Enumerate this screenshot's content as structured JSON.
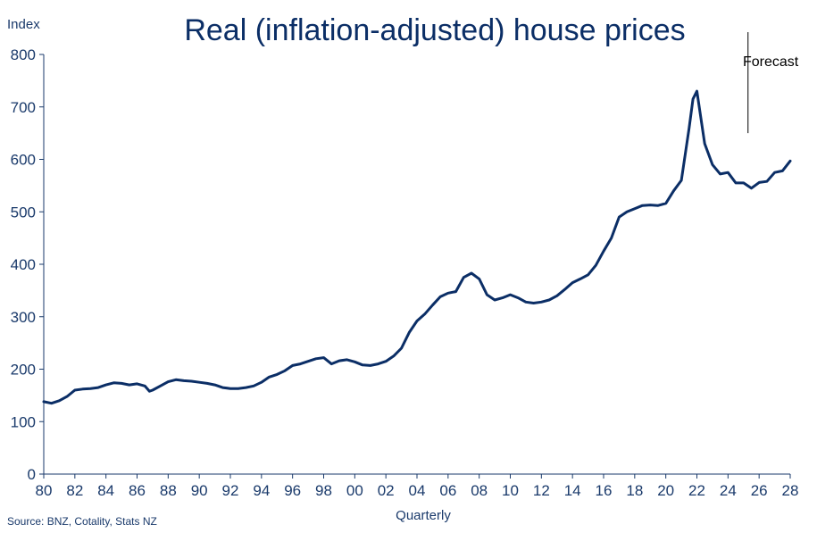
{
  "chart_data": {
    "type": "line",
    "title": "Real (inflation-adjusted) house prices",
    "ylabel": "Index",
    "xlabel": "Quarterly",
    "source": "Source: BNZ, Cotality, Stats NZ",
    "annotation": {
      "text": "Forecast",
      "x": 2025.0
    },
    "ylim": [
      0,
      800
    ],
    "yticks": [
      "0",
      "100",
      "200",
      "300",
      "400",
      "500",
      "600",
      "700",
      "800"
    ],
    "xlim": [
      1980,
      2028
    ],
    "xticks": [
      "80",
      "82",
      "84",
      "86",
      "88",
      "90",
      "92",
      "94",
      "96",
      "98",
      "00",
      "02",
      "04",
      "06",
      "08",
      "10",
      "12",
      "14",
      "16",
      "18",
      "20",
      "22",
      "24",
      "26",
      "28"
    ],
    "grid": false,
    "series": [
      {
        "color": "#0b2e66",
        "x": [
          1980.0,
          1980.5,
          1981.0,
          1981.5,
          1982.0,
          1982.5,
          1983.0,
          1983.5,
          1984.0,
          1984.5,
          1985.0,
          1985.5,
          1986.0,
          1986.5,
          1986.8,
          1987.0,
          1987.5,
          1988.0,
          1988.5,
          1989.0,
          1989.5,
          1990.0,
          1990.5,
          1991.0,
          1991.5,
          1992.0,
          1992.5,
          1993.0,
          1993.5,
          1994.0,
          1994.5,
          1995.0,
          1995.5,
          1996.0,
          1996.5,
          1997.0,
          1997.5,
          1998.0,
          1998.5,
          1999.0,
          1999.5,
          2000.0,
          2000.5,
          2001.0,
          2001.5,
          2002.0,
          2002.5,
          2003.0,
          2003.5,
          2004.0,
          2004.5,
          2005.0,
          2005.5,
          2006.0,
          2006.5,
          2007.0,
          2007.5,
          2008.0,
          2008.5,
          2009.0,
          2009.5,
          2010.0,
          2010.5,
          2011.0,
          2011.5,
          2012.0,
          2012.5,
          2013.0,
          2013.5,
          2014.0,
          2014.5,
          2015.0,
          2015.5,
          2016.0,
          2016.5,
          2017.0,
          2017.5,
          2018.0,
          2018.5,
          2019.0,
          2019.5,
          2020.0,
          2020.5,
          2021.0,
          2021.5,
          2021.75,
          2022.0,
          2022.5,
          2023.0,
          2023.5,
          2024.0,
          2024.5,
          2025.0,
          2025.5,
          2026.0,
          2026.5,
          2027.0,
          2027.5,
          2028.0
        ],
        "y": [
          138,
          135,
          140,
          148,
          160,
          162,
          163,
          165,
          170,
          174,
          173,
          170,
          172,
          168,
          158,
          160,
          168,
          176,
          180,
          178,
          177,
          175,
          173,
          170,
          165,
          163,
          163,
          165,
          168,
          175,
          185,
          190,
          197,
          207,
          210,
          215,
          220,
          222,
          210,
          216,
          218,
          214,
          208,
          207,
          210,
          215,
          225,
          240,
          270,
          292,
          305,
          322,
          338,
          345,
          348,
          375,
          383,
          372,
          342,
          332,
          336,
          342,
          336,
          328,
          326,
          328,
          332,
          340,
          352,
          365,
          372,
          380,
          398,
          425,
          450,
          490,
          500,
          506,
          512,
          513,
          512,
          516,
          540,
          560,
          660,
          715,
          730,
          630,
          590,
          572,
          575,
          555,
          555,
          545,
          556,
          558,
          575,
          578,
          597
        ]
      }
    ]
  }
}
